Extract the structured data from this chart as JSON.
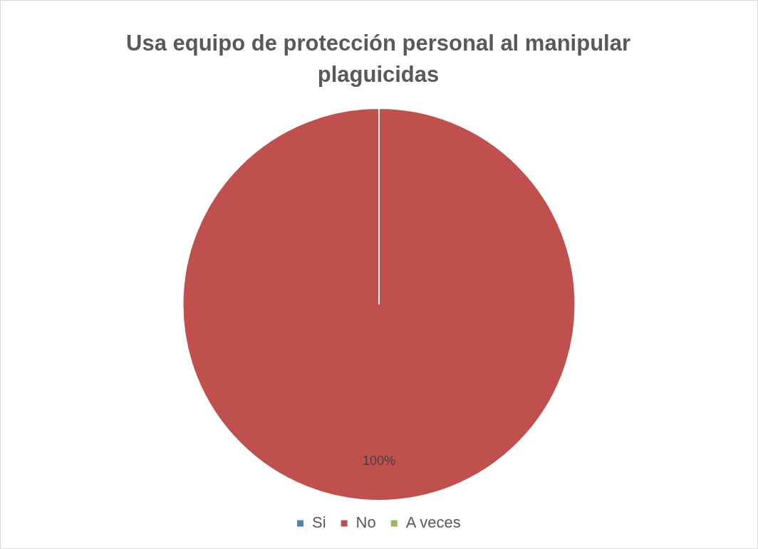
{
  "chart_data": {
    "type": "pie",
    "title": "Usa equipo de protección personal al manipular plaguicidas",
    "categories": [
      "Si",
      "No",
      "A veces"
    ],
    "values": [
      0,
      100,
      0
    ],
    "colors": [
      "#4f81bd",
      "#c0504d",
      "#9bbb59"
    ],
    "value_labels": [
      null,
      "100%",
      null
    ],
    "legend": "bottom"
  }
}
